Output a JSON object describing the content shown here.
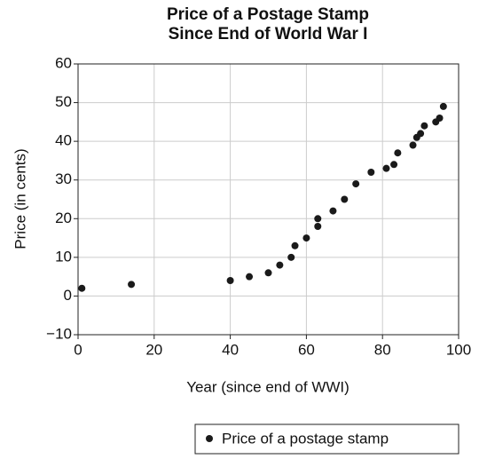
{
  "chart_data": {
    "type": "scatter",
    "title": "Price of a Postage Stamp",
    "subtitle": "Since End of World War I",
    "x_label": "Year (since end of WWI)",
    "y_label": "Price (in cents)",
    "series": [
      {
        "name": "Price of a postage stamp",
        "color": "#1a1a1a",
        "x": [
          1,
          14,
          40,
          45,
          50,
          53,
          56,
          57,
          60,
          63,
          63,
          67,
          70,
          73,
          77,
          81,
          83,
          84,
          88,
          89,
          90,
          91,
          94,
          95,
          96
        ],
        "values": [
          2,
          3,
          4,
          5,
          6,
          8,
          10,
          13,
          15,
          18,
          20,
          22,
          25,
          29,
          32,
          33,
          34,
          37,
          39,
          41,
          42,
          44,
          45,
          46,
          49
        ]
      }
    ],
    "xlim": [
      0,
      100
    ],
    "xticks": [
      0,
      20,
      40,
      60,
      80,
      100
    ],
    "ylim": [
      -10,
      60
    ],
    "yticks": [
      {
        "value": -10,
        "label": "−10"
      },
      0,
      10,
      20,
      30,
      40,
      50,
      60
    ],
    "grid": true,
    "legend": "bottom-right"
  }
}
